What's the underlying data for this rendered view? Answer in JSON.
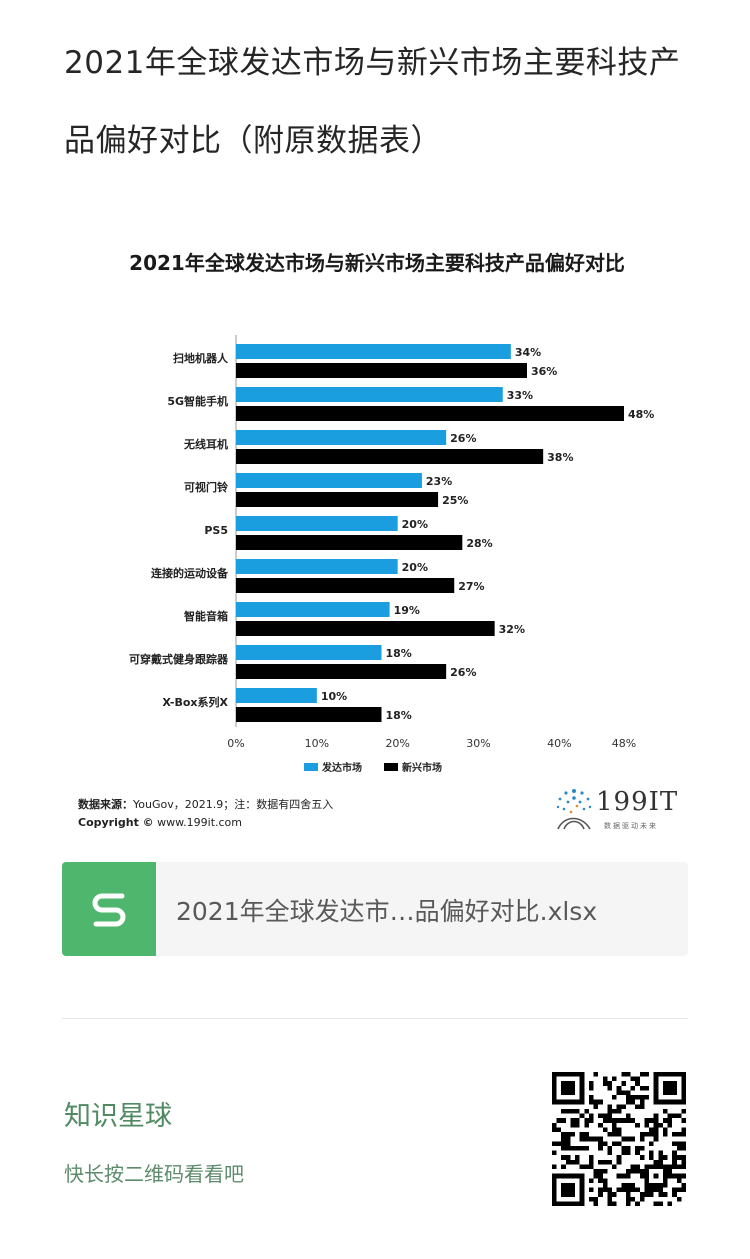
{
  "post": {
    "title": "2021年全球发达市场与新兴市场主要科技产品偏好对比（附原数据表）"
  },
  "chart_data": {
    "type": "bar",
    "orientation": "horizontal",
    "title": "2021年全球发达市场与新兴市场主要科技产品偏好对比",
    "categories": [
      "扫地机器人",
      "5G智能手机",
      "无线耳机",
      "可视门铃",
      "PS5",
      "连接的运动设备",
      "智能音箱",
      "可穿戴式健身跟踪器",
      "X-Box系列X"
    ],
    "series": [
      {
        "name": "发达市场",
        "color": "#1a9ee0",
        "values": [
          34,
          33,
          26,
          23,
          20,
          20,
          19,
          18,
          10
        ]
      },
      {
        "name": "新兴市场",
        "color": "#000000",
        "values": [
          36,
          48,
          38,
          25,
          28,
          27,
          32,
          26,
          18
        ]
      }
    ],
    "xticks": [
      "0%",
      "10%",
      "20%",
      "30%",
      "40%",
      "48%"
    ],
    "xlim": [
      0,
      48
    ],
    "value_suffix": "%",
    "legend": "bottom"
  },
  "source": {
    "label": "数据来源：",
    "text": "YouGov，2021.9；注：数据有四舍五入",
    "copyright_label": "Copyright ©",
    "copyright_text": "www.199it.com"
  },
  "logo": {
    "text": "199IT",
    "subtext": "数据驱动未来"
  },
  "file": {
    "name": "2021年全球发达市…品偏好对比.xlsx",
    "icon": "spreadsheet-icon",
    "icon_color": "#4fb66e"
  },
  "planet": {
    "title": "知识星球",
    "subtitle": "快长按二维码看看吧"
  },
  "qr": {
    "icon": "qr-code-icon"
  }
}
